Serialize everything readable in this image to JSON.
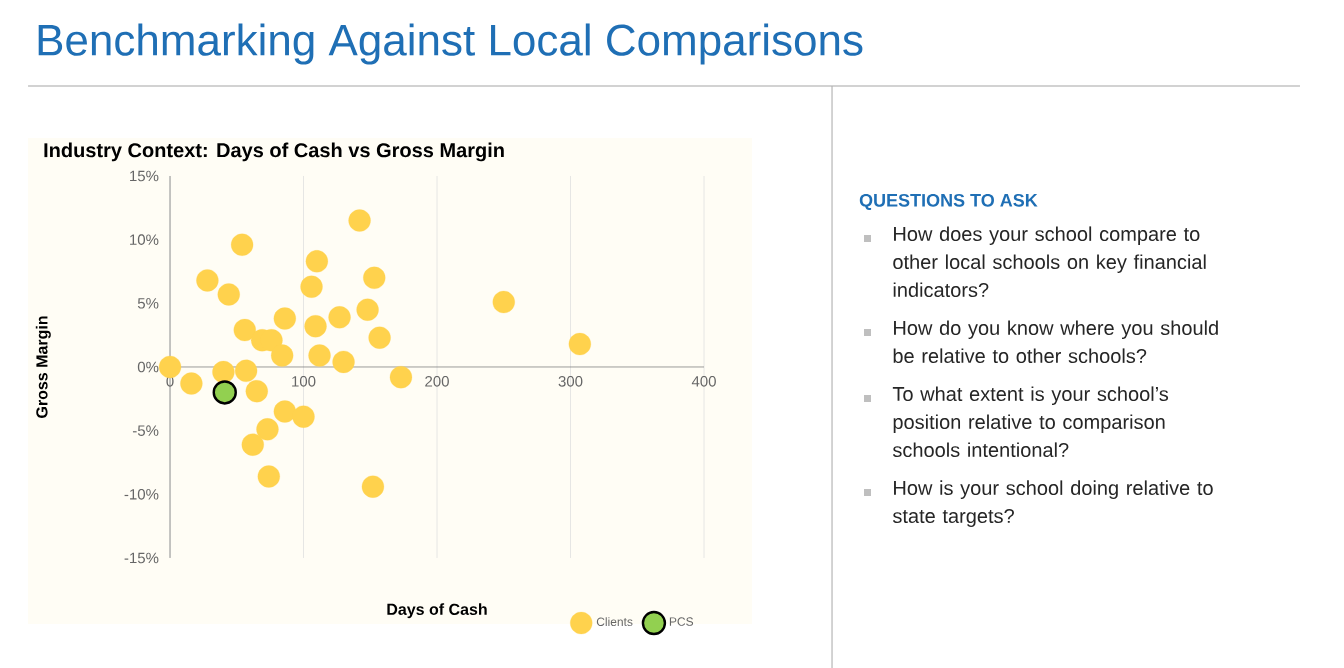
{
  "chart_data": {
    "type": "scatter",
    "title": "Benchmarking Against Local Comparisons",
    "subtitle": "Industry Context: Days of Cash vs Gross Margin",
    "xlabel": "Days of Cash",
    "ylabel": "Gross Margin",
    "xlim": [
      0,
      400
    ],
    "xticks": [
      0,
      100,
      200,
      300,
      400
    ],
    "ylim": [
      -15,
      15
    ],
    "yticks": [
      {
        "value": -15,
        "label": "-15%"
      },
      {
        "value": -10,
        "label": "-10%"
      },
      {
        "value": -5,
        "label": "-5%"
      },
      {
        "value": 0,
        "label": "0%"
      },
      {
        "value": 5,
        "label": "5%"
      },
      {
        "value": 10,
        "label": "10%"
      },
      {
        "value": 15,
        "label": "15%"
      }
    ],
    "grid": "x",
    "legend": "bottom right",
    "series": [
      {
        "name": "Clients",
        "color": "#ffd24d",
        "x": [
          0,
          16,
          28,
          44,
          54,
          56,
          40,
          57,
          65,
          69,
          76,
          84,
          86,
          73,
          62,
          74,
          86,
          100,
          110,
          106,
          109,
          112,
          127,
          130,
          142,
          148,
          153,
          157,
          152,
          173,
          250,
          307
        ],
        "values": [
          0,
          -1.3,
          6.8,
          5.7,
          9.6,
          2.9,
          -0.4,
          -0.3,
          -1.9,
          2.1,
          2.1,
          0.9,
          3.8,
          -4.9,
          -6.1,
          -8.6,
          -3.5,
          -3.9,
          8.3,
          6.3,
          3.2,
          0.9,
          3.9,
          0.4,
          11.5,
          4.5,
          7.0,
          2.3,
          -9.4,
          -0.8,
          5.1,
          1.8
        ]
      },
      {
        "name": "PCS",
        "color": "#92d050",
        "x": [
          41
        ],
        "values": [
          -2.0
        ]
      }
    ],
    "annotations": [
      "QUESTIONS TO ASK",
      "How does your school compare to other local schools on key financial indicators?",
      "How do you know where you should be relative to other schools?",
      "To what extent is your school’s position relative to comparison schools intentional?",
      "How is your school doing relative to state targets?"
    ]
  }
}
